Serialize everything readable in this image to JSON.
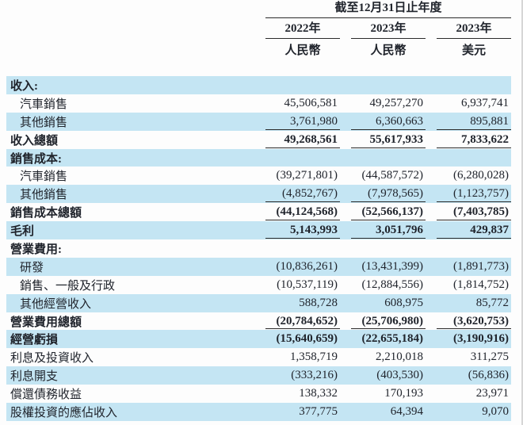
{
  "header": {
    "period_title": "截至12月31日止年度",
    "columns": [
      {
        "year": "2022年",
        "currency": "人民幣"
      },
      {
        "year": "2023年",
        "currency": "人民幣"
      },
      {
        "year": "2023年",
        "currency": "美元"
      }
    ]
  },
  "colors": {
    "row_highlight": "#c4e5f3",
    "text": "#20242c",
    "rule": "#2b2b2b"
  },
  "table": {
    "rows": [
      {
        "label": "收入:",
        "values": [
          "",
          "",
          ""
        ],
        "bold": true,
        "indent": 0,
        "shaded": true,
        "underline": false
      },
      {
        "label": "汽車銷售",
        "values": [
          "45,506,581",
          "49,257,270",
          "6,937,741"
        ],
        "bold": false,
        "indent": 1,
        "shaded": false,
        "underline": false
      },
      {
        "label": "其他銷售",
        "values": [
          "3,761,980",
          "6,360,663",
          "895,881"
        ],
        "bold": false,
        "indent": 1,
        "shaded": true,
        "underline": true
      },
      {
        "label": "收入總額",
        "values": [
          "49,268,561",
          "55,617,933",
          "7,833,622"
        ],
        "bold": true,
        "indent": 0,
        "shaded": false,
        "underline": true
      },
      {
        "label": "銷售成本:",
        "values": [
          "",
          "",
          ""
        ],
        "bold": true,
        "indent": 0,
        "shaded": true,
        "underline": false
      },
      {
        "label": "汽車銷售",
        "values": [
          "(39,271,801)",
          "(44,587,572)",
          "(6,280,028)"
        ],
        "bold": false,
        "indent": 1,
        "shaded": false,
        "underline": false
      },
      {
        "label": "其他銷售",
        "values": [
          "(4,852,767)",
          "(7,978,565)",
          "(1,123,757)"
        ],
        "bold": false,
        "indent": 1,
        "shaded": true,
        "underline": true
      },
      {
        "label": "銷售成本總額",
        "values": [
          "(44,124,568)",
          "(52,566,137)",
          "(7,403,785)"
        ],
        "bold": true,
        "indent": 0,
        "shaded": false,
        "underline": true
      },
      {
        "label": "毛利",
        "values": [
          "5,143,993",
          "3,051,796",
          "429,837"
        ],
        "bold": true,
        "indent": 0,
        "shaded": true,
        "underline": true
      },
      {
        "label": "營業費用:",
        "values": [
          "",
          "",
          ""
        ],
        "bold": true,
        "indent": 0,
        "shaded": false,
        "underline": false
      },
      {
        "label": "研發",
        "values": [
          "(10,836,261)",
          "(13,431,399)",
          "(1,891,773)"
        ],
        "bold": false,
        "indent": 1,
        "shaded": true,
        "underline": false
      },
      {
        "label": "銷售、一般及行政",
        "values": [
          "(10,537,119)",
          "(12,884,556)",
          "(1,814,752)"
        ],
        "bold": false,
        "indent": 1,
        "shaded": false,
        "underline": false
      },
      {
        "label": "其他經營收入",
        "values": [
          "588,728",
          "608,975",
          "85,772"
        ],
        "bold": false,
        "indent": 1,
        "shaded": true,
        "underline": false
      },
      {
        "label": "營業費用總額",
        "values": [
          "(20,784,652)",
          "(25,706,980)",
          "(3,620,753)"
        ],
        "bold": true,
        "indent": 0,
        "shaded": false,
        "underline": true
      },
      {
        "label": "經營虧損",
        "values": [
          "(15,640,659)",
          "(22,655,184)",
          "(3,190,916)"
        ],
        "bold": true,
        "indent": 0,
        "shaded": true,
        "underline": false
      },
      {
        "label": "利息及投資收入",
        "values": [
          "1,358,719",
          "2,210,018",
          "311,275"
        ],
        "bold": false,
        "indent": 0,
        "shaded": false,
        "underline": false
      },
      {
        "label": "利息開支",
        "values": [
          "(333,216)",
          "(403,530)",
          "(56,836)"
        ],
        "bold": false,
        "indent": 0,
        "shaded": true,
        "underline": false
      },
      {
        "label": "償還債務收益",
        "values": [
          "138,332",
          "170,193",
          "23,971"
        ],
        "bold": false,
        "indent": 0,
        "shaded": false,
        "underline": false
      },
      {
        "label": "股權投資的應佔收入",
        "values": [
          "377,775",
          "64,394",
          "9,070"
        ],
        "bold": false,
        "indent": 0,
        "shaded": true,
        "underline": false
      }
    ]
  }
}
